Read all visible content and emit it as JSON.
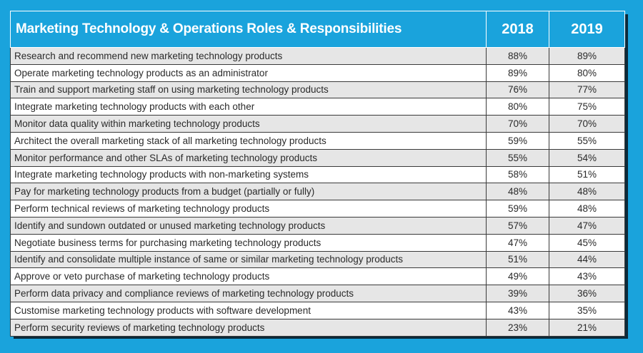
{
  "colors": {
    "background": "#1aa3dc",
    "header_bg": "#1aa3dc",
    "header_text": "#ffffff",
    "row_alt": "#e6e6e6",
    "row_plain": "#ffffff",
    "border": "#3a3a3a"
  },
  "chart_data": {
    "type": "table",
    "title": "Marketing Technology & Operations Roles & Responsibilities",
    "columns": [
      "2018",
      "2019"
    ],
    "rows": [
      {
        "label": "Research and recommend new marketing technology products",
        "values": [
          "88%",
          "89%"
        ]
      },
      {
        "label": "Operate marketing technology products as an administrator",
        "values": [
          "89%",
          "80%"
        ]
      },
      {
        "label": "Train and support marketing staff on using marketing technology products",
        "values": [
          "76%",
          "77%"
        ]
      },
      {
        "label": "Integrate marketing technology products with each other",
        "values": [
          "80%",
          "75%"
        ]
      },
      {
        "label": "Monitor data quality within marketing technology products",
        "values": [
          "70%",
          "70%"
        ]
      },
      {
        "label": "Architect the overall marketing stack of all marketing technology products",
        "values": [
          "59%",
          "55%"
        ]
      },
      {
        "label": "Monitor performance and other SLAs of marketing technology products",
        "values": [
          "55%",
          "54%"
        ]
      },
      {
        "label": "Integrate marketing technology products with non-marketing systems",
        "values": [
          "58%",
          "51%"
        ]
      },
      {
        "label": "Pay for marketing technology products from a budget (partially or fully)",
        "values": [
          "48%",
          "48%"
        ]
      },
      {
        "label": "Perform technical reviews of marketing technology products",
        "values": [
          "59%",
          "48%"
        ]
      },
      {
        "label": "Identify and sundown outdated or unused marketing technology products",
        "values": [
          "57%",
          "47%"
        ]
      },
      {
        "label": "Negotiate business terms for purchasing marketing technology products",
        "values": [
          "47%",
          "45%"
        ]
      },
      {
        "label": "Identify and consolidate multiple instance of same or similar marketing technology products",
        "values": [
          "51%",
          "44%"
        ]
      },
      {
        "label": "Approve or veto purchase of marketing technology products",
        "values": [
          "49%",
          "43%"
        ]
      },
      {
        "label": "Perform data privacy and compliance reviews of marketing technology products",
        "values": [
          "39%",
          "36%"
        ]
      },
      {
        "label": "Customise marketing technology products with software development",
        "values": [
          "43%",
          "35%"
        ]
      },
      {
        "label": "Perform security reviews of marketing technology products",
        "values": [
          "23%",
          "21%"
        ]
      }
    ]
  }
}
